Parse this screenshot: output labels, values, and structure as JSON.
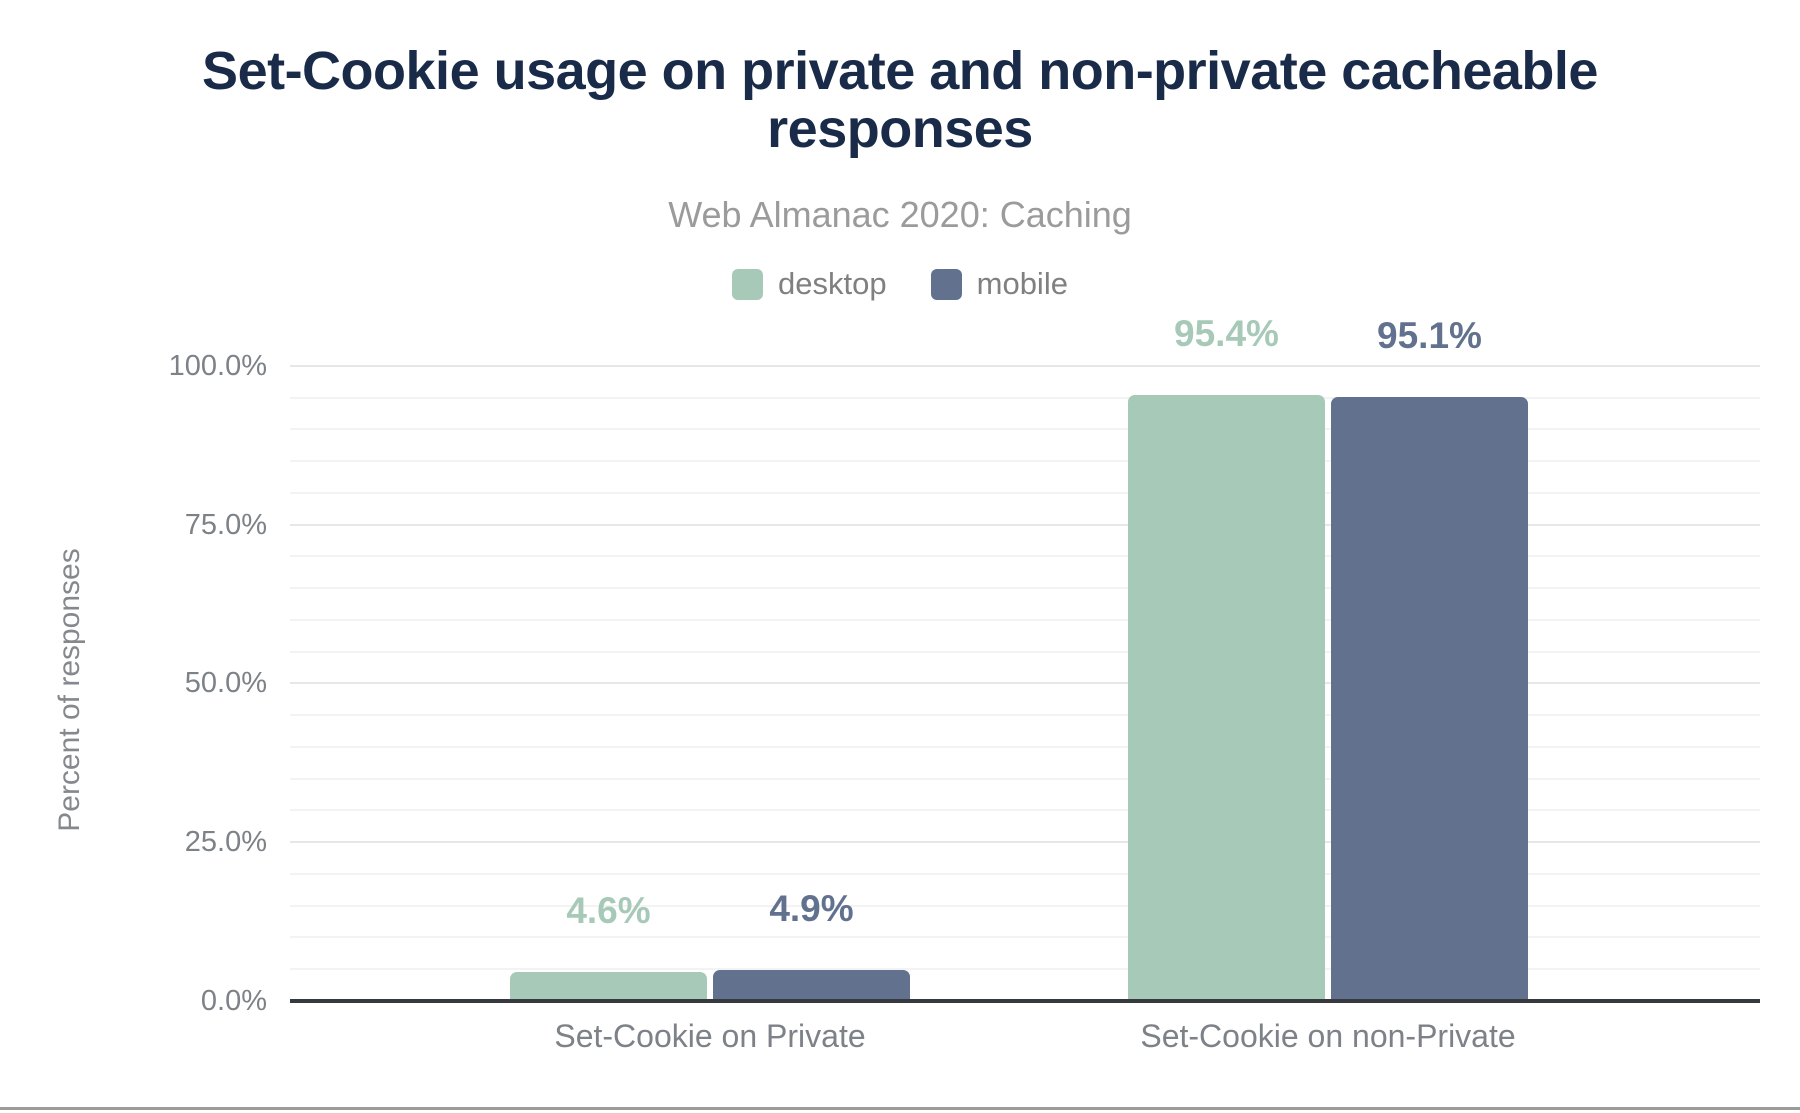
{
  "header": {
    "title": "Set-Cookie usage on private and non-private cacheable responses",
    "subtitle": "Web Almanac 2020: Caching"
  },
  "chart_data": {
    "type": "bar",
    "title": "Set-Cookie usage on private and non-private cacheable responses",
    "subtitle": "Web Almanac 2020: Caching",
    "categories": [
      "Set-Cookie on Private",
      "Set-Cookie on non-Private"
    ],
    "series": [
      {
        "name": "desktop",
        "color": "#a7c9b8",
        "values": [
          4.6,
          95.4
        ],
        "data_labels": [
          "4.6%",
          "95.4%"
        ]
      },
      {
        "name": "mobile",
        "color": "#62728e",
        "values": [
          4.9,
          95.1
        ],
        "data_labels": [
          "4.9%",
          "95.1%"
        ]
      }
    ],
    "xlabel": "",
    "ylabel": "Percent of responses",
    "ylim": [
      0,
      100
    ],
    "yticks": [
      {
        "value": 0,
        "label": "0.0%"
      },
      {
        "value": 25,
        "label": "25.0%"
      },
      {
        "value": 50,
        "label": "50.0%"
      },
      {
        "value": 75,
        "label": "75.0%"
      },
      {
        "value": 100,
        "label": "100.0%"
      }
    ],
    "minor_tick_step": 5,
    "major_tick_step": 25,
    "grid": true,
    "legend_position": "top-center"
  },
  "colors": {
    "title_text": "#1a2b49",
    "subtitle_text": "#9b9b9b",
    "desktop": "#a7c9b8",
    "mobile": "#62728e",
    "axis_text": "#7d8288",
    "axis_line": "#36393d",
    "grid_major": "#e7e7e7",
    "grid_minor": "#f3f3f3",
    "footer_divider": "#9b9b9b"
  }
}
